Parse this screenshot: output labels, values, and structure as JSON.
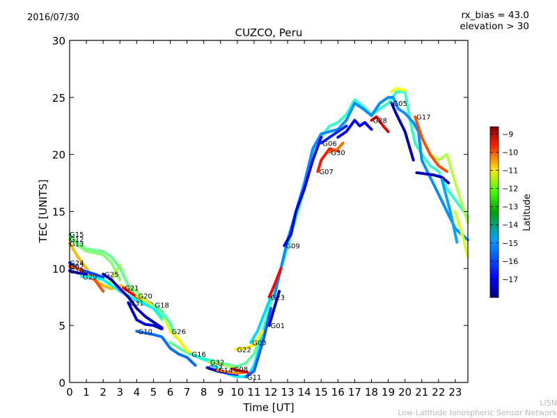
{
  "header": {
    "date": "2016/07/30",
    "rx_bias_line": "rx_bias = 43.0",
    "elevation_line": "elevation > 30"
  },
  "footer": {
    "org_short": "LISN",
    "org_long": "Low-Latitude Ionospheric Sensor Network"
  },
  "chart_data": {
    "type": "scatter",
    "title": "CUZCO, Peru",
    "xlabel": "Time [UT]",
    "ylabel": "TEC [UNITS]",
    "xlim": [
      0,
      23.75
    ],
    "ylim": [
      0,
      30
    ],
    "xticks": [
      0,
      1,
      2,
      3,
      4,
      5,
      6,
      7,
      8,
      9,
      10,
      11,
      12,
      13,
      14,
      15,
      16,
      17,
      18,
      19,
      20,
      21,
      22,
      23
    ],
    "yticks": [
      0,
      5,
      10,
      15,
      20,
      25,
      30
    ],
    "grid": false,
    "colorbar": {
      "label": "Latitude",
      "range": [
        -18,
        -8.6
      ],
      "ticks": [
        -9,
        -10,
        -11,
        -12,
        -13,
        -14,
        -15,
        -16,
        -17
      ],
      "colormap": "jet",
      "placement": "right"
    },
    "series": [
      {
        "name": "G15",
        "lat": -13.5,
        "points": [
          [
            0,
            13
          ],
          [
            0.5,
            12.2
          ],
          [
            1,
            11.7
          ],
          [
            1.5,
            11.6
          ],
          [
            2,
            11.5
          ],
          [
            2.5,
            11
          ],
          [
            3,
            10
          ],
          [
            3.5,
            8.5
          ],
          [
            4,
            7.5
          ],
          [
            4.5,
            7
          ],
          [
            5,
            6.5
          ],
          [
            5.5,
            5.5
          ]
        ]
      },
      {
        "name": "G12",
        "lat": -13.2,
        "points": [
          [
            0,
            12.6
          ],
          [
            0.5,
            12
          ],
          [
            1,
            11.5
          ],
          [
            2,
            11.2
          ],
          [
            2.5,
            10.5
          ],
          [
            3,
            9
          ]
        ]
      },
      {
        "name": "G13",
        "lat": -11.5,
        "points": [
          [
            0,
            12.2
          ],
          [
            0.5,
            11
          ],
          [
            1,
            10
          ],
          [
            1.5,
            9
          ],
          [
            2,
            8.5
          ],
          [
            2.5,
            8.2
          ],
          [
            3,
            8.5
          ],
          [
            3.5,
            8.2
          ]
        ]
      },
      {
        "name": "G24",
        "lat": -16.2,
        "points": [
          [
            0,
            10.5
          ],
          [
            0.5,
            10
          ],
          [
            1,
            9.7
          ],
          [
            1.5,
            9.5
          ],
          [
            2,
            9.2
          ]
        ]
      },
      {
        "name": "G02",
        "lat": -10.5,
        "points": [
          [
            0,
            10.2
          ],
          [
            0.5,
            10
          ],
          [
            1,
            9.4
          ],
          [
            1.5,
            9
          ],
          [
            2,
            8
          ]
        ]
      },
      {
        "name": "G19",
        "lat": -17.3,
        "points": [
          [
            0,
            9.8
          ],
          [
            0.5,
            9.6
          ],
          [
            1,
            9.5
          ]
        ]
      },
      {
        "name": "G29",
        "lat": -14.5,
        "points": [
          [
            0.7,
            9.3
          ],
          [
            1.5,
            9.2
          ],
          [
            2,
            9
          ],
          [
            2.5,
            8.5
          ],
          [
            3,
            8
          ],
          [
            4,
            7.2
          ],
          [
            5,
            6.5
          ],
          [
            5.5,
            5.7
          ]
        ]
      },
      {
        "name": "G25",
        "lat": -17.5,
        "points": [
          [
            2,
            9.5
          ],
          [
            2.5,
            9
          ],
          [
            3,
            8.2
          ],
          [
            3.5,
            7.5
          ],
          [
            4,
            6.5
          ],
          [
            4.5,
            5.8
          ],
          [
            5,
            5.3
          ],
          [
            5.5,
            4.8
          ]
        ]
      },
      {
        "name": "G21",
        "lat": -9.8,
        "points": [
          [
            3.2,
            8.3
          ],
          [
            3.5,
            8
          ],
          [
            4,
            7.5
          ],
          [
            4.5,
            7.2
          ],
          [
            5,
            6.8
          ]
        ]
      },
      {
        "name": "G20",
        "lat": -12.5,
        "points": [
          [
            4,
            7.6
          ],
          [
            4.5,
            7.2
          ],
          [
            5,
            6.7
          ],
          [
            5.5,
            6.3
          ],
          [
            6,
            4.5
          ]
        ]
      },
      {
        "name": "G18",
        "lat": -13.8,
        "points": [
          [
            5,
            6.8
          ],
          [
            5.5,
            6.2
          ],
          [
            6,
            5.2
          ],
          [
            6.3,
            4
          ]
        ]
      },
      {
        "name": "G31",
        "lat": -17.2,
        "points": [
          [
            3.5,
            7
          ],
          [
            4,
            5.5
          ],
          [
            4.5,
            5.1
          ],
          [
            5,
            5
          ],
          [
            5.5,
            4.7
          ]
        ]
      },
      {
        "name": "G26",
        "lat": -12.0,
        "points": [
          [
            6,
            4.5
          ],
          [
            6.5,
            3.8
          ],
          [
            7,
            2.8
          ],
          [
            7.5,
            2.3
          ]
        ]
      },
      {
        "name": "G10",
        "lat": -15.8,
        "points": [
          [
            4,
            4.5
          ],
          [
            5,
            4.2
          ],
          [
            5.5,
            4
          ],
          [
            6,
            3
          ],
          [
            6.5,
            2.5
          ],
          [
            7,
            2.2
          ],
          [
            7.5,
            1.5
          ]
        ]
      },
      {
        "name": "G16",
        "lat": -14.2,
        "points": [
          [
            7.2,
            2.5
          ],
          [
            8,
            2
          ],
          [
            8.5,
            1.8
          ],
          [
            9,
            1.6
          ],
          [
            9.5,
            1.5
          ]
        ]
      },
      {
        "name": "G32",
        "lat": -13.0,
        "points": [
          [
            8.3,
            1.8
          ],
          [
            9,
            1.6
          ],
          [
            9.5,
            1.4
          ],
          [
            10,
            1.2
          ]
        ]
      },
      {
        "name": "G27",
        "lat": -16.8,
        "points": [
          [
            8.2,
            1.3
          ],
          [
            8.8,
            1
          ],
          [
            9.5,
            0.8
          ],
          [
            10,
            0.7
          ]
        ]
      },
      {
        "name": "G14",
        "lat": -11.0,
        "points": [
          [
            8.8,
            1.1
          ],
          [
            9.5,
            0.9
          ],
          [
            10,
            0.8
          ],
          [
            10.5,
            0.9
          ]
        ]
      },
      {
        "name": "G08",
        "lat": -9.5,
        "points": [
          [
            9.7,
            1.2
          ],
          [
            10.2,
            1
          ],
          [
            10.6,
            0.9
          ]
        ]
      },
      {
        "name": "G22",
        "lat": -12.0,
        "points": [
          [
            9.9,
            2.9
          ],
          [
            10.5,
            3
          ],
          [
            11,
            3.3
          ],
          [
            11.5,
            4.5
          ]
        ]
      },
      {
        "name": "G03",
        "lat": -14.8,
        "points": [
          [
            10.8,
            3.5
          ],
          [
            11.2,
            4.5
          ],
          [
            11.6,
            6
          ],
          [
            12,
            7.5
          ]
        ]
      },
      {
        "name": "G11",
        "lat": -16.0,
        "points": [
          [
            10.5,
            0.5
          ],
          [
            11,
            1
          ],
          [
            11.3,
            2.5
          ],
          [
            11.6,
            4
          ],
          [
            12,
            6.5
          ]
        ]
      },
      {
        "name": "G01",
        "lat": -17.5,
        "points": [
          [
            11.9,
            5
          ],
          [
            12.2,
            6.5
          ],
          [
            12.5,
            8
          ]
        ]
      },
      {
        "name": "G23",
        "lat": -9.8,
        "points": [
          [
            11.9,
            7.5
          ],
          [
            12.2,
            8.5
          ],
          [
            12.6,
            10
          ]
        ]
      },
      {
        "name": "G09",
        "lat": -17.0,
        "points": [
          [
            12.8,
            12
          ],
          [
            13.2,
            13
          ],
          [
            13.5,
            15
          ],
          [
            14,
            17
          ],
          [
            14.5,
            19.5
          ],
          [
            15,
            21.5
          ]
        ]
      },
      {
        "name": "G07",
        "lat": -10.0,
        "points": [
          [
            14.8,
            18.5
          ],
          [
            15,
            19.5
          ],
          [
            15.5,
            20.5
          ],
          [
            16,
            20.3
          ]
        ]
      },
      {
        "name": "G30",
        "lat": -10.8,
        "points": [
          [
            15.5,
            20.2
          ],
          [
            16,
            20.5
          ],
          [
            16.3,
            21
          ]
        ]
      },
      {
        "name": "G06",
        "lat": -16.5,
        "points": [
          [
            15,
            21
          ],
          [
            15.5,
            21.5
          ],
          [
            16,
            22
          ],
          [
            16.5,
            22.5
          ]
        ]
      },
      {
        "name": "G28",
        "lat": -9.5,
        "points": [
          [
            18,
            23
          ],
          [
            18.3,
            23.3
          ],
          [
            18.7,
            22.5
          ],
          [
            19,
            22
          ]
        ]
      },
      {
        "name": "G05",
        "lat": -17.5,
        "points": [
          [
            19.2,
            24.5
          ],
          [
            19.5,
            23.5
          ],
          [
            20,
            22
          ],
          [
            20.5,
            19.5
          ]
        ]
      },
      {
        "name": "G17",
        "lat": -10.5,
        "points": [
          [
            20.6,
            23.3
          ],
          [
            21,
            21.5
          ],
          [
            21.5,
            20
          ],
          [
            22,
            19
          ],
          [
            22.5,
            18.5
          ]
        ]
      }
    ],
    "bands": [
      {
        "name": "band-a",
        "lat": -14.0,
        "points": [
          [
            12,
            7
          ],
          [
            13,
            12
          ],
          [
            14,
            17
          ],
          [
            14.5,
            20
          ],
          [
            15,
            21.5
          ],
          [
            15.5,
            22.5
          ],
          [
            16,
            22.8
          ],
          [
            16.5,
            23.5
          ],
          [
            17,
            24.8
          ],
          [
            17.5,
            24.2
          ],
          [
            18,
            23.5
          ],
          [
            18.5,
            24
          ],
          [
            19,
            24.5
          ],
          [
            19.5,
            25.5
          ],
          [
            20,
            25.5
          ],
          [
            20.3,
            23
          ],
          [
            20.6,
            21
          ],
          [
            21,
            20
          ],
          [
            21.5,
            19
          ],
          [
            22,
            18.5
          ],
          [
            22.5,
            17
          ],
          [
            23,
            16
          ],
          [
            23.75,
            14.5
          ]
        ]
      },
      {
        "name": "band-b",
        "lat": -15.5,
        "points": [
          [
            12.2,
            7.5
          ],
          [
            13,
            12.5
          ],
          [
            14,
            17.5
          ],
          [
            14.5,
            20.5
          ],
          [
            15,
            21.8
          ],
          [
            15.5,
            22
          ],
          [
            16,
            22.2
          ],
          [
            16.5,
            23
          ],
          [
            17,
            24.5
          ],
          [
            17.5,
            24
          ],
          [
            18,
            23.4
          ],
          [
            18.5,
            24.5
          ],
          [
            19,
            25
          ],
          [
            19.3,
            25
          ],
          [
            19.6,
            24
          ],
          [
            20,
            23.6
          ],
          [
            20.5,
            22.8
          ],
          [
            20.8,
            22
          ],
          [
            21,
            19.5
          ],
          [
            21.5,
            18
          ],
          [
            22,
            16.5
          ],
          [
            22.5,
            15
          ],
          [
            23,
            13.5
          ],
          [
            23.75,
            12.5
          ]
        ]
      },
      {
        "name": "band-c",
        "lat": -16.8,
        "points": [
          [
            16,
            21.5
          ],
          [
            16.5,
            22
          ],
          [
            17,
            23
          ],
          [
            17.3,
            22.5
          ],
          [
            17.6,
            22.8
          ],
          [
            18,
            22.2
          ]
        ]
      },
      {
        "name": "band-d",
        "lat": -17.5,
        "points": [
          [
            20.7,
            18.4
          ],
          [
            21.2,
            18.3
          ],
          [
            21.7,
            18.2
          ],
          [
            22.2,
            18
          ],
          [
            22.6,
            17.5
          ]
        ]
      },
      {
        "name": "band-e",
        "lat": -12.8,
        "points": [
          [
            21.5,
            20
          ],
          [
            22,
            19.5
          ],
          [
            22.5,
            20
          ],
          [
            23,
            17.5
          ],
          [
            23.75,
            14
          ]
        ]
      },
      {
        "name": "band-f",
        "lat": -12.2,
        "points": [
          [
            19.2,
            25.5
          ],
          [
            19.5,
            25.8
          ],
          [
            20,
            25.6
          ]
        ]
      },
      {
        "name": "band-g",
        "lat": -15.3,
        "points": [
          [
            22.2,
            17.8
          ],
          [
            22.7,
            15
          ],
          [
            23.1,
            12.3
          ]
        ]
      },
      {
        "name": "band-h",
        "lat": -12.5,
        "points": [
          [
            23,
            15
          ],
          [
            23.5,
            12.5
          ],
          [
            23.75,
            11
          ]
        ]
      },
      {
        "name": "band-i",
        "lat": -13.6,
        "points": [
          [
            6,
            3.5
          ],
          [
            7,
            2.6
          ],
          [
            8,
            2.1
          ],
          [
            9,
            1.7
          ],
          [
            10,
            1.4
          ],
          [
            10.5,
            1.7
          ],
          [
            11,
            2.5
          ],
          [
            11.5,
            4.5
          ],
          [
            12,
            7
          ]
        ]
      },
      {
        "name": "band-j",
        "lat": -14.6,
        "points": [
          [
            8.5,
            1.5
          ],
          [
            9.5,
            0.7
          ],
          [
            10,
            0.5
          ],
          [
            10.6,
            0.5
          ],
          [
            11,
            1.5
          ],
          [
            11.5,
            4
          ],
          [
            12,
            6.5
          ]
        ]
      },
      {
        "name": "band-k",
        "lat": -13.0,
        "points": [
          [
            3,
            10.2
          ],
          [
            3.2,
            9.5
          ],
          [
            3.5,
            8.5
          ],
          [
            4,
            8
          ],
          [
            4.5,
            7.2
          ],
          [
            5,
            6.6
          ],
          [
            5.5,
            6
          ]
        ]
      },
      {
        "name": "band-l",
        "lat": -12.6,
        "points": [
          [
            2.3,
            8.5
          ],
          [
            2.7,
            9.5
          ],
          [
            3,
            10.3
          ]
        ]
      }
    ]
  }
}
